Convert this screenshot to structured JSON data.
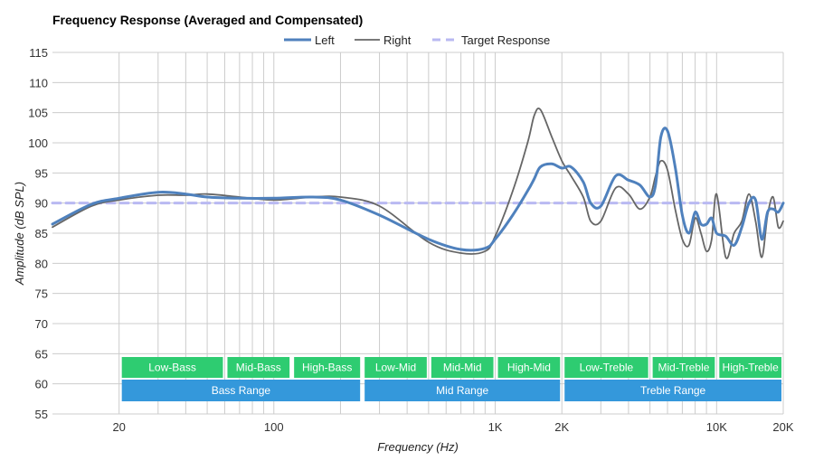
{
  "chart_data": {
    "type": "line",
    "title": "Frequency Response (Averaged and Compensated)",
    "xlabel": "Frequency (Hz)",
    "ylabel": "Amplitude (dB SPL)",
    "x_scale": "log",
    "xlim": [
      10,
      20000
    ],
    "ylim": [
      55,
      115
    ],
    "y_ticks": [
      55,
      60,
      65,
      70,
      75,
      80,
      85,
      90,
      95,
      100,
      105,
      110,
      115
    ],
    "x_ticks": [
      {
        "value": 20,
        "label": "20"
      },
      {
        "value": 100,
        "label": "100"
      },
      {
        "value": 1000,
        "label": "1K"
      },
      {
        "value": 2000,
        "label": "2K"
      },
      {
        "value": 10000,
        "label": "10K"
      },
      {
        "value": 20000,
        "label": "20K"
      }
    ],
    "minor_gridlines": [
      20,
      30,
      40,
      50,
      60,
      70,
      80,
      90,
      100,
      200,
      300,
      400,
      500,
      600,
      700,
      800,
      900,
      1000,
      2000,
      3000,
      4000,
      5000,
      6000,
      7000,
      8000,
      9000,
      10000,
      20000
    ],
    "legend_position": "top-center",
    "colors": {
      "left": "#4f81bd",
      "right": "#666666",
      "target": "#b9b9f2",
      "band_green": "#2ecc71",
      "band_blue": "#3498db"
    },
    "series": [
      {
        "name": "Left",
        "x": [
          10,
          15,
          20,
          30,
          40,
          50,
          70,
          100,
          150,
          200,
          300,
          500,
          700,
          900,
          1000,
          1200,
          1400,
          1500,
          1600,
          1800,
          2000,
          2200,
          2500,
          2700,
          3000,
          3500,
          4000,
          4500,
          5000,
          5300,
          5600,
          6000,
          6500,
          7000,
          7500,
          8000,
          8500,
          9000,
          9500,
          10000,
          11000,
          12000,
          13000,
          14000,
          15000,
          16000,
          17000,
          18000,
          19000,
          20000
        ],
        "values": [
          86.5,
          89.8,
          90.8,
          91.8,
          91.5,
          91.0,
          90.8,
          90.8,
          91.0,
          90.5,
          88.0,
          84.0,
          82.3,
          82.5,
          84.0,
          88.0,
          92.0,
          94.0,
          96.0,
          96.5,
          95.8,
          96.0,
          93.5,
          90.0,
          89.5,
          94.5,
          93.8,
          93.0,
          91.0,
          93.0,
          101.0,
          102.0,
          96.0,
          88.0,
          85.0,
          88.5,
          86.5,
          86.5,
          87.5,
          85.0,
          84.5,
          83.0,
          86.0,
          90.0,
          90.5,
          84.0,
          88.5,
          89.0,
          88.5,
          90.0
        ]
      },
      {
        "name": "Right",
        "x": [
          10,
          15,
          20,
          30,
          40,
          50,
          70,
          100,
          150,
          200,
          300,
          500,
          700,
          900,
          1000,
          1200,
          1400,
          1500,
          1600,
          1800,
          2000,
          2200,
          2500,
          2700,
          3000,
          3500,
          4000,
          4500,
          5000,
          5300,
          5600,
          6000,
          6500,
          7000,
          7500,
          8000,
          8500,
          9000,
          9500,
          10000,
          11000,
          12000,
          13000,
          14000,
          15000,
          16000,
          17000,
          18000,
          19000,
          20000
        ],
        "values": [
          86.0,
          89.5,
          90.5,
          91.3,
          91.3,
          91.5,
          91.0,
          90.5,
          91.0,
          91.0,
          89.5,
          83.5,
          81.7,
          82.0,
          84.5,
          92.0,
          100.0,
          104.5,
          105.5,
          101.0,
          97.0,
          94.5,
          91.0,
          87.0,
          87.0,
          92.5,
          91.5,
          89.0,
          91.0,
          94.5,
          97.0,
          95.5,
          89.0,
          84.0,
          83.0,
          87.5,
          85.0,
          82.0,
          84.0,
          91.5,
          81.0,
          85.0,
          87.0,
          91.5,
          87.0,
          81.0,
          88.0,
          91.0,
          86.0,
          87.0
        ]
      },
      {
        "name": "Target Response",
        "x": [
          10,
          20000
        ],
        "values": [
          90,
          90
        ]
      }
    ],
    "bands_top": [
      {
        "label": "Low-Bass",
        "from": 20,
        "to": 60
      },
      {
        "label": "Mid-Bass",
        "from": 60,
        "to": 120
      },
      {
        "label": "High-Bass",
        "from": 120,
        "to": 250
      },
      {
        "label": "Low-Mid",
        "from": 250,
        "to": 500
      },
      {
        "label": "Mid-Mid",
        "from": 500,
        "to": 1000
      },
      {
        "label": "High-Mid",
        "from": 1000,
        "to": 2000
      },
      {
        "label": "Low-Treble",
        "from": 2000,
        "to": 5000
      },
      {
        "label": "Mid-Treble",
        "from": 5000,
        "to": 10000
      },
      {
        "label": "High-Treble",
        "from": 10000,
        "to": 20000
      }
    ],
    "bands_bottom": [
      {
        "label": "Bass Range",
        "from": 20,
        "to": 250
      },
      {
        "label": "Mid Range",
        "from": 250,
        "to": 2000
      },
      {
        "label": "Treble Range",
        "from": 2000,
        "to": 20000
      }
    ]
  }
}
